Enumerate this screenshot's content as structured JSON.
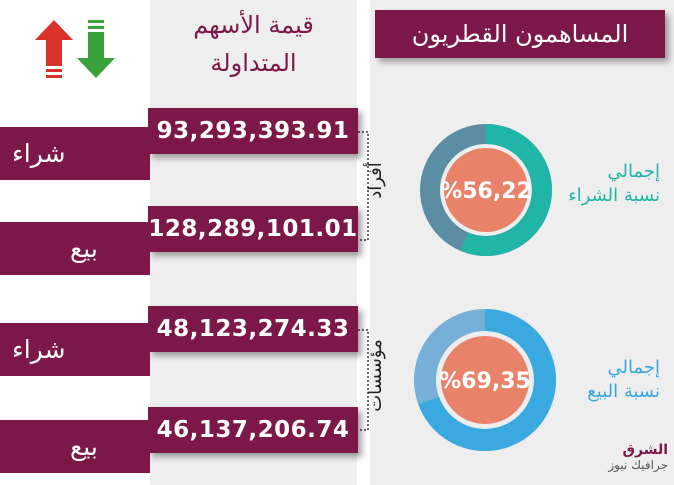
{
  "header": {
    "title": "المساهمون القطريون",
    "column_title_line1": "قيمة الأسهم",
    "column_title_line2": "المتداولة"
  },
  "groups": [
    {
      "label": "أفراد",
      "rows": [
        {
          "type_label": "شراء",
          "value": "93,293,393.91"
        },
        {
          "type_label": "بيع",
          "value": "128,289,101.01"
        }
      ],
      "donut": {
        "title_line1": "إجمالي",
        "title_line2": "نسبة الشراء",
        "percent_text": "%56,22",
        "percent_value": 56.22,
        "colors": {
          "main": "#21b5a8",
          "rest": "#5b8ea3",
          "center": "#e8836a"
        }
      }
    },
    {
      "label": "مؤسسات",
      "rows": [
        {
          "type_label": "شراء",
          "value": "48,123,274.33"
        },
        {
          "type_label": "بيع",
          "value": "46,137,206.74"
        }
      ],
      "donut": {
        "title_line1": "إجمالي",
        "title_line2": "نسبة البيع",
        "percent_text": "%69,35",
        "percent_value": 69.35,
        "colors": {
          "main": "#39a9e0",
          "rest": "#76b0d8",
          "center": "#e8836a"
        }
      }
    }
  ],
  "brand": {
    "line1": "الشرق",
    "line2": "جرافيك نيوز"
  },
  "arrows": {
    "up_color": "#d8322a",
    "down_color": "#3aa23a"
  }
}
